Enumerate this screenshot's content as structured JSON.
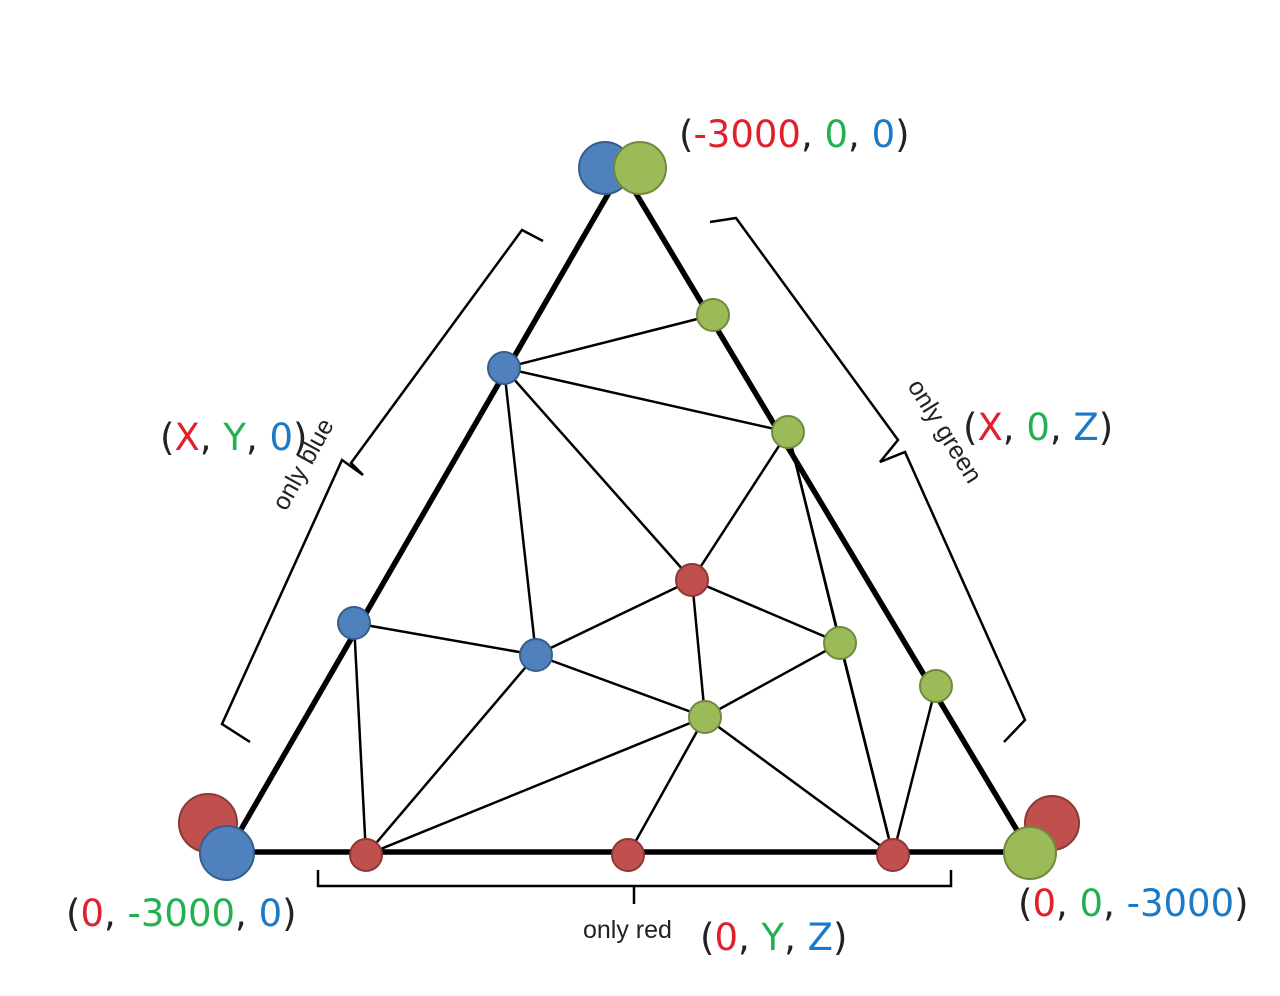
{
  "colors": {
    "red": "#c0504d",
    "green": "#9bbb59",
    "blue": "#4f81bd",
    "red_text": "#e0202a",
    "green_text": "#22b050",
    "blue_text": "#1a7ac8",
    "red_stroke": "#8c3836",
    "green_stroke": "#71893f",
    "blue_stroke": "#385d8a"
  },
  "vertex_labels": {
    "top": {
      "open": "(",
      "x": "-3000",
      "sep1": ", ",
      "y": "0",
      "sep2": ", ",
      "z": "0",
      "close": ")"
    },
    "bottom_left": {
      "open": "(",
      "x": "0",
      "sep1": ", ",
      "y": "-3000",
      "sep2": ", ",
      "z": "0",
      "close": ")"
    },
    "bottom_right": {
      "open": "(",
      "x": "0",
      "sep1": ", ",
      "y": "0",
      "sep2": ", ",
      "z": "-3000",
      "close": ")"
    }
  },
  "edge_labels": {
    "left": {
      "note": "only blue",
      "open": "(",
      "x": "X",
      "sep1": ", ",
      "y": "Y",
      "sep2": ", ",
      "z": "0",
      "close": ")"
    },
    "right": {
      "note": "only green",
      "open": "(",
      "x": "X",
      "sep1": ", ",
      "y": "0",
      "sep2": ", ",
      "z": "Z",
      "close": ")"
    },
    "bottom": {
      "note": "only red",
      "open": "(",
      "x": "0",
      "sep1": ", ",
      "y": "Y",
      "sep2": ", ",
      "z": "Z",
      "close": ")"
    }
  }
}
